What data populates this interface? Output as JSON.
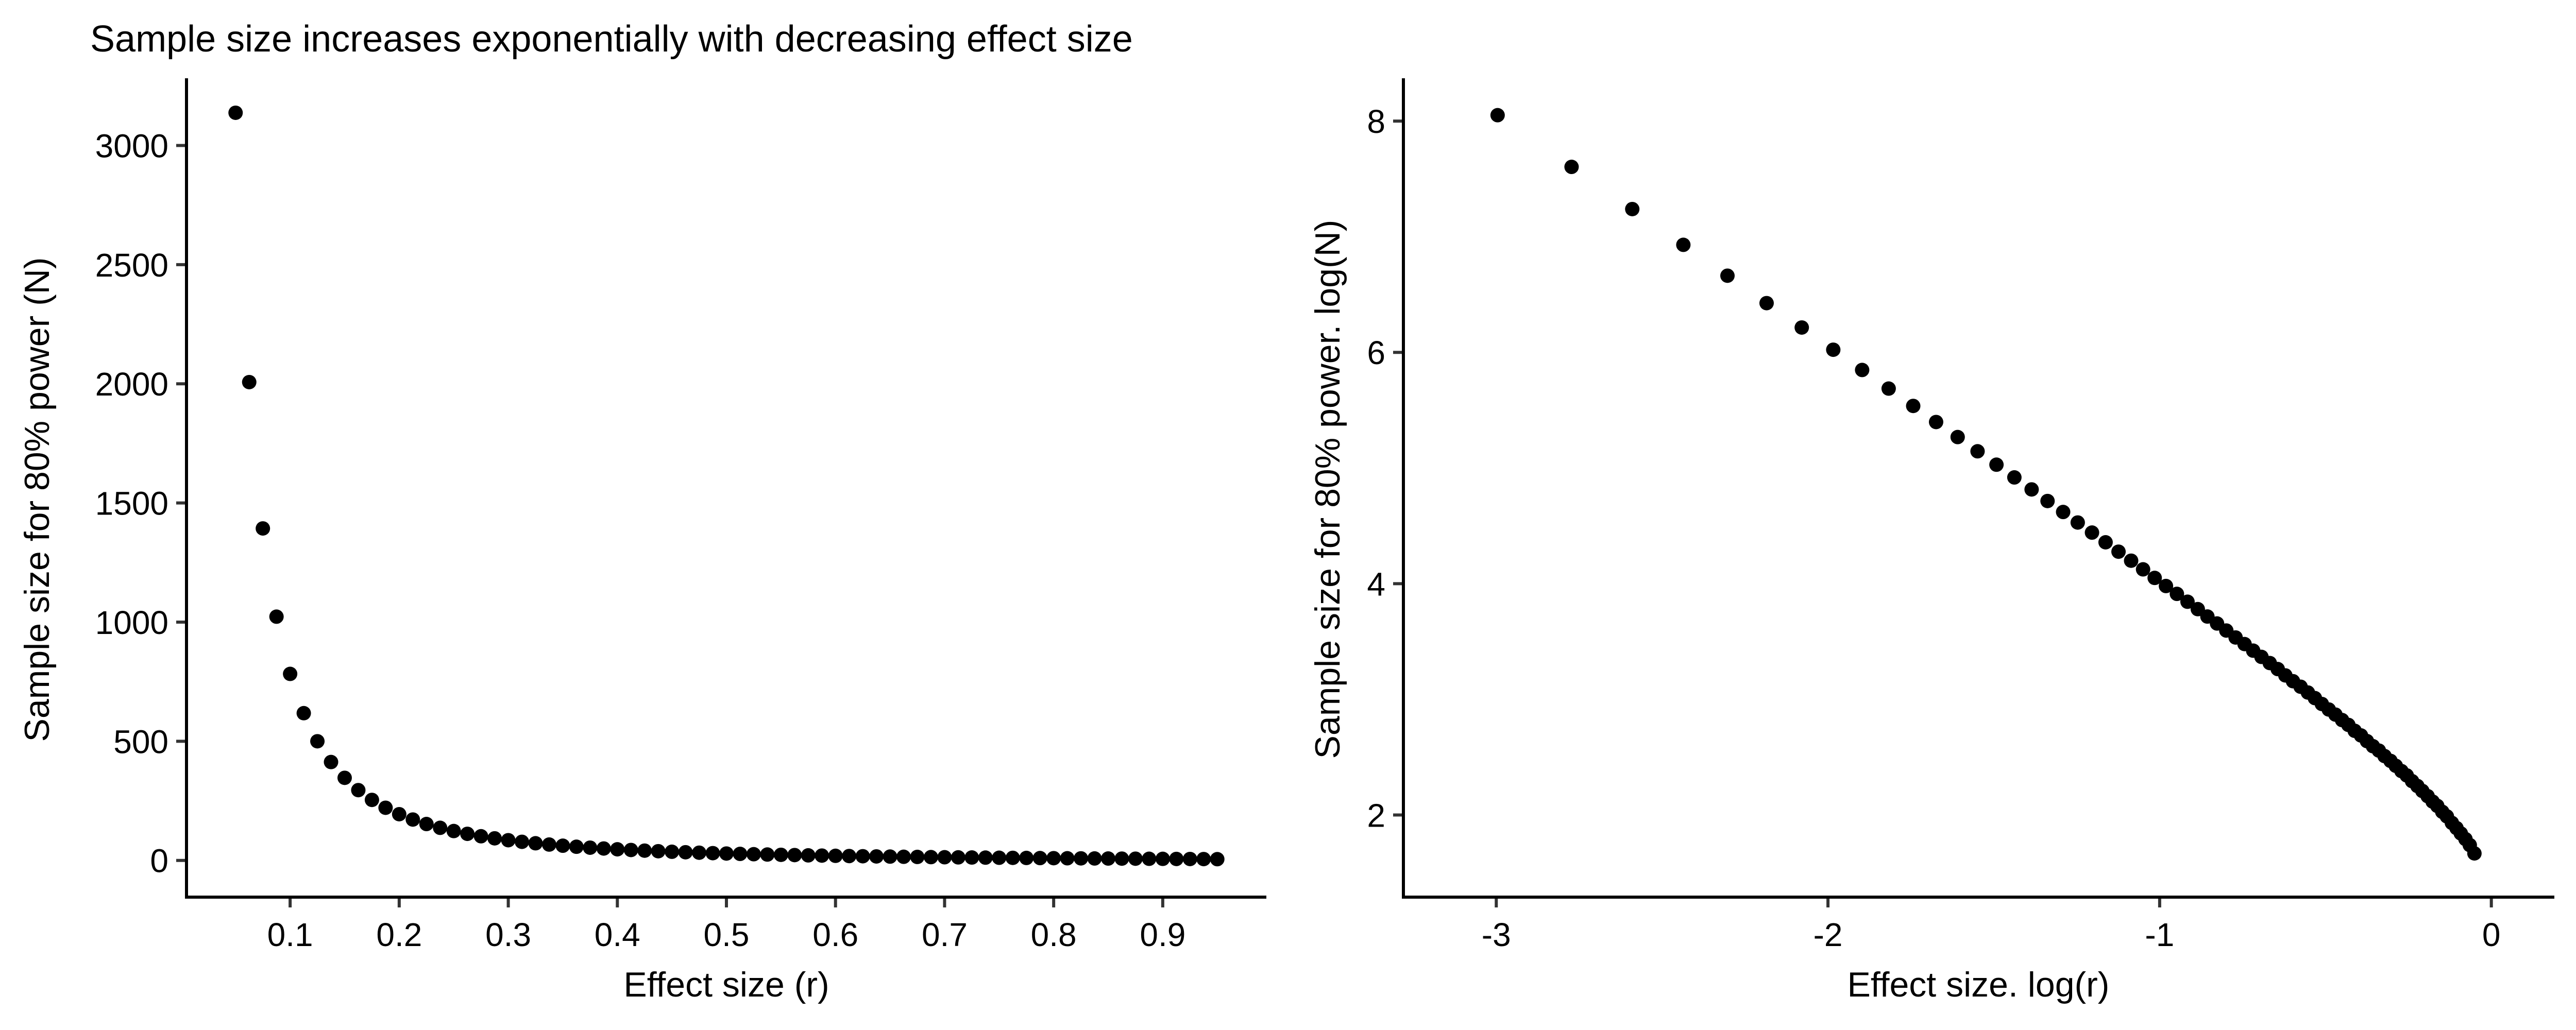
{
  "title": "Sample size increases exponentially with decreasing effect size",
  "colors": {
    "point": "#000000",
    "axis": "#000000",
    "tick": "#333333",
    "background": "#ffffff"
  },
  "chart_data": [
    {
      "type": "scatter",
      "title": "Sample size increases exponentially with decreasing effect size",
      "xlabel": "Effect size (r)",
      "ylabel": "Sample size for 80% power (N)",
      "xlim": [
        0.005,
        0.995
      ],
      "ylim": [
        -154,
        3282
      ],
      "xticks": [
        0.1,
        0.2,
        0.3,
        0.4,
        0.5,
        0.6,
        0.7,
        0.8,
        0.9
      ],
      "xtick_labels": [
        "0.1",
        "0.2",
        "0.3",
        "0.4",
        "0.5",
        "0.6",
        "0.7",
        "0.8",
        "0.9"
      ],
      "yticks": [
        0,
        500,
        1000,
        1500,
        2000,
        2500,
        3000
      ],
      "ytick_labels": [
        "0",
        "500",
        "1000",
        "1500",
        "2000",
        "2500",
        "3000"
      ],
      "grid": false,
      "legend": "none",
      "x": [
        0.05,
        0.0625,
        0.075,
        0.0875,
        0.1,
        0.1125,
        0.125,
        0.1375,
        0.15,
        0.1625,
        0.175,
        0.1875,
        0.2,
        0.2125,
        0.225,
        0.2375,
        0.25,
        0.2625,
        0.275,
        0.2875,
        0.3,
        0.3125,
        0.325,
        0.3375,
        0.35,
        0.3625,
        0.375,
        0.3875,
        0.4,
        0.4125,
        0.425,
        0.4375,
        0.45,
        0.4625,
        0.475,
        0.4875,
        0.5,
        0.5125,
        0.525,
        0.5375,
        0.55,
        0.5625,
        0.575,
        0.5875,
        0.6,
        0.6125,
        0.625,
        0.6375,
        0.65,
        0.6625,
        0.675,
        0.6875,
        0.7,
        0.7125,
        0.725,
        0.7375,
        0.75,
        0.7625,
        0.775,
        0.7875,
        0.8,
        0.8125,
        0.825,
        0.8375,
        0.85,
        0.8625,
        0.875,
        0.8875,
        0.9,
        0.9125,
        0.925,
        0.9375,
        0.95
      ],
      "y": [
        3137.3,
        2007.1,
        1393.1,
        1022.9,
        782.7,
        617.9,
        500.1,
        412.9,
        346.6,
        295.0,
        254.0,
        221.0,
        194.0,
        171.6,
        152.8,
        136.9,
        123.3,
        111.6,
        101.5,
        92.7,
        84.9,
        78.1,
        72.0,
        66.6,
        61.8,
        57.4,
        53.5,
        50.0,
        46.7,
        43.8,
        41.1,
        38.7,
        36.4,
        34.3,
        32.4,
        30.6,
        29.0,
        27.5,
        26.1,
        24.7,
        23.5,
        22.4,
        21.3,
        20.3,
        19.3,
        18.4,
        17.6,
        16.8,
        16.1,
        15.3,
        14.7,
        14.0,
        13.4,
        12.9,
        12.3,
        11.8,
        11.3,
        10.8,
        10.4,
        9.9,
        9.5,
        9.1,
        8.7,
        8.3,
        8.0,
        7.6,
        7.3,
        6.9,
        6.6,
        6.3,
        6.0,
        5.7,
        5.3
      ]
    },
    {
      "type": "scatter",
      "title": "",
      "xlabel": "Effect size. log(r)",
      "ylabel": "Sample size for 80% power. log(N)",
      "xlim": [
        -3.28,
        0.19
      ],
      "ylim": [
        1.29,
        8.37
      ],
      "xticks": [
        -3,
        -2,
        -1,
        0
      ],
      "xtick_labels": [
        "-3",
        "-2",
        "-1",
        "0"
      ],
      "yticks": [
        2,
        4,
        6,
        8
      ],
      "ytick_labels": [
        "2",
        "4",
        "6",
        "8"
      ],
      "grid": false,
      "legend": "none",
      "x": [
        -2.996,
        -2.773,
        -2.59,
        -2.436,
        -2.303,
        -2.185,
        -2.079,
        -1.984,
        -1.897,
        -1.817,
        -1.743,
        -1.674,
        -1.609,
        -1.549,
        -1.492,
        -1.438,
        -1.386,
        -1.338,
        -1.291,
        -1.247,
        -1.204,
        -1.163,
        -1.124,
        -1.086,
        -1.05,
        -1.015,
        -0.981,
        -0.948,
        -0.916,
        -0.885,
        -0.856,
        -0.827,
        -0.799,
        -0.771,
        -0.744,
        -0.718,
        -0.693,
        -0.668,
        -0.644,
        -0.621,
        -0.598,
        -0.575,
        -0.553,
        -0.532,
        -0.511,
        -0.49,
        -0.47,
        -0.45,
        -0.431,
        -0.412,
        -0.393,
        -0.375,
        -0.357,
        -0.339,
        -0.322,
        -0.304,
        -0.288,
        -0.271,
        -0.255,
        -0.239,
        -0.223,
        -0.208,
        -0.192,
        -0.177,
        -0.163,
        -0.148,
        -0.134,
        -0.119,
        -0.105,
        -0.092,
        -0.078,
        -0.065,
        -0.051
      ],
      "y": [
        8.051,
        7.604,
        7.239,
        6.93,
        6.663,
        6.426,
        6.215,
        6.023,
        5.848,
        5.687,
        5.537,
        5.398,
        5.268,
        5.145,
        5.029,
        4.919,
        4.815,
        4.715,
        4.62,
        4.529,
        4.442,
        4.358,
        4.277,
        4.199,
        4.124,
        4.05,
        3.98,
        3.912,
        3.844,
        3.78,
        3.716,
        3.656,
        3.595,
        3.535,
        3.478,
        3.421,
        3.367,
        3.314,
        3.262,
        3.207,
        3.157,
        3.109,
        3.059,
        3.011,
        2.96,
        2.912,
        2.868,
        2.821,
        2.779,
        2.728,
        2.688,
        2.639,
        2.595,
        2.557,
        2.51,
        2.468,
        2.425,
        2.38,
        2.342,
        2.293,
        2.251,
        2.208,
        2.163,
        2.116,
        2.079,
        2.028,
        1.988,
        1.932,
        1.887,
        1.841,
        1.792,
        1.74,
        1.668
      ]
    }
  ]
}
